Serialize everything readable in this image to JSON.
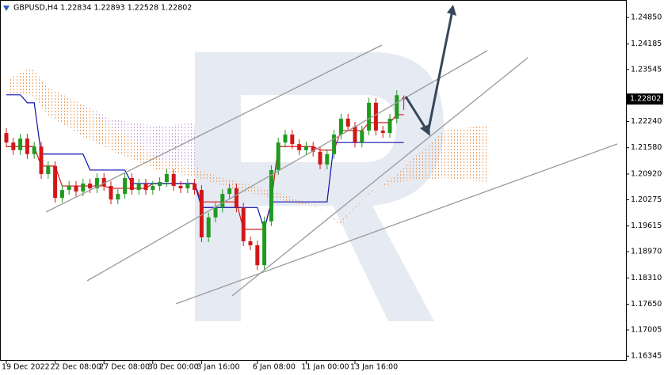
{
  "chart_data": {
    "type": "candlestick",
    "title": "GBPUSD,H4  1.22834 1.22893 1.22528 1.22802",
    "categories": [
      "19 Dec 2022",
      null,
      null,
      null,
      null,
      null,
      null,
      "22 Dec 08:00",
      null,
      null,
      null,
      null,
      null,
      null,
      "27 Dec 08:00",
      null,
      null,
      null,
      null,
      null,
      null,
      "30 Dec 00:00",
      null,
      null,
      null,
      null,
      null,
      null,
      "3 Jan 16:00",
      null,
      null,
      null,
      null,
      null,
      null,
      null,
      "6 Jan 08:00",
      null,
      null,
      null,
      null,
      null,
      null,
      "11 Jan 00:00",
      null,
      null,
      null,
      null,
      null,
      null,
      "13 Jan 16:00",
      null,
      null,
      null,
      null,
      null,
      null,
      null
    ],
    "open": [
      1.2195,
      1.2171,
      1.2152,
      1.2181,
      1.2142,
      1.2161,
      1.2092,
      1.2112,
      1.2032,
      1.2052,
      1.2062,
      1.2048,
      1.2068,
      1.2056,
      1.2082,
      1.2062,
      1.2028,
      1.2042,
      1.2082,
      1.2052,
      1.2068,
      1.2052,
      1.2062,
      1.2072,
      1.2092,
      1.2062,
      1.2056,
      1.2068,
      1.2052,
      1.1933,
      1.1983,
      1.2008,
      1.2042,
      1.2056,
      1.2008,
      1.1923,
      1.1913,
      1.1863,
      1.1973,
      1.2102,
      1.2171,
      1.2191,
      1.2167,
      1.2152,
      1.2161,
      1.2148,
      1.2116,
      1.2142,
      1.2191,
      1.2231,
      1.2211,
      1.2171,
      1.2201,
      1.2271,
      1.2201,
      1.2195,
      1.2231,
      1.22834
    ],
    "high": [
      1.2207,
      1.2183,
      1.2193,
      1.2193,
      1.2173,
      1.2173,
      1.2124,
      1.2124,
      1.2064,
      1.2074,
      1.2074,
      1.208,
      1.208,
      1.2094,
      1.2094,
      1.2074,
      1.2054,
      1.2094,
      1.2094,
      1.208,
      1.208,
      1.2074,
      1.2084,
      1.2104,
      1.2104,
      1.2074,
      1.208,
      1.208,
      1.2064,
      1.1995,
      1.202,
      1.2054,
      1.2068,
      1.2068,
      1.202,
      1.1935,
      1.1925,
      1.1985,
      1.2114,
      1.2183,
      1.2203,
      1.2203,
      1.2179,
      1.2173,
      1.2173,
      1.216,
      1.2154,
      1.2203,
      1.2243,
      1.2243,
      1.2223,
      1.2213,
      1.2283,
      1.2283,
      1.2213,
      1.2243,
      1.2302,
      1.22893
    ],
    "low": [
      1.2159,
      1.214,
      1.214,
      1.213,
      1.213,
      1.208,
      1.208,
      1.202,
      1.202,
      1.204,
      1.2036,
      1.2036,
      1.2044,
      1.2044,
      1.205,
      1.2016,
      1.2016,
      1.203,
      1.204,
      1.204,
      1.204,
      1.204,
      1.205,
      1.206,
      1.205,
      1.2044,
      1.2044,
      1.204,
      1.1921,
      1.1921,
      1.1971,
      1.1996,
      1.203,
      1.1996,
      1.1911,
      1.1901,
      1.1851,
      1.1851,
      1.1961,
      1.209,
      1.2159,
      1.2155,
      1.214,
      1.214,
      1.2136,
      1.2104,
      1.2104,
      1.213,
      1.2179,
      1.2199,
      1.2159,
      1.2159,
      1.2189,
      1.2189,
      1.2183,
      1.2183,
      1.2219,
      1.22528
    ],
    "close": [
      1.2171,
      1.2152,
      1.2181,
      1.2142,
      1.2161,
      1.2092,
      1.2112,
      1.2032,
      1.2052,
      1.2062,
      1.2048,
      1.2068,
      1.2056,
      1.2082,
      1.2062,
      1.2028,
      1.2042,
      1.2082,
      1.2052,
      1.2068,
      1.2052,
      1.2062,
      1.2072,
      1.2092,
      1.2062,
      1.2056,
      1.2068,
      1.2052,
      1.1933,
      1.1983,
      1.2008,
      1.2042,
      1.2056,
      1.2008,
      1.1923,
      1.1913,
      1.1863,
      1.1973,
      1.2102,
      1.2171,
      1.2191,
      1.2167,
      1.2152,
      1.2161,
      1.2148,
      1.2116,
      1.2142,
      1.2191,
      1.2231,
      1.2211,
      1.2171,
      1.2201,
      1.2271,
      1.2201,
      1.2195,
      1.2231,
      1.229,
      1.22802
    ],
    "up_color": "#1f9a1f",
    "down_color": "#d01818",
    "lines": [
      {
        "color": "#d01818",
        "values": [
          1.2161,
          1.2161,
          1.2161,
          1.2161,
          1.2161,
          1.2112,
          1.2112,
          1.2112,
          1.2062,
          1.2062,
          1.2062,
          1.2062,
          1.2062,
          1.2062,
          1.2062,
          1.2056,
          1.2056,
          1.2056,
          1.2056,
          1.2056,
          1.2056,
          1.2068,
          1.2068,
          1.2068,
          1.2068,
          1.2068,
          1.2068,
          1.2068,
          1.2022,
          1.2022,
          1.2022,
          1.2022,
          1.2022,
          1.2022,
          1.1953,
          1.1953,
          1.1953,
          1.1953,
          1.2022,
          1.2161,
          1.2161,
          1.2161,
          1.2161,
          1.2161,
          1.2161,
          1.2152,
          1.2152,
          1.2152,
          1.2201,
          1.2201,
          1.2201,
          1.2201,
          1.2221,
          1.2221,
          1.2221,
          1.2221,
          1.2241,
          1.2241
        ]
      },
      {
        "color": "#1010b0",
        "values": [
          1.2291,
          1.2291,
          1.2291,
          1.2271,
          1.2271,
          1.2142,
          1.2142,
          1.2142,
          1.2142,
          1.2142,
          1.2142,
          1.2142,
          1.2102,
          1.2102,
          1.2102,
          1.2102,
          1.2102,
          1.2102,
          1.2068,
          1.2068,
          1.2068,
          1.2068,
          1.2068,
          1.2068,
          1.2068,
          1.2068,
          1.2068,
          1.2068,
          1.2008,
          1.2008,
          1.2008,
          1.2008,
          1.2008,
          1.2008,
          1.2008,
          1.2008,
          1.2008,
          1.1953,
          1.2022,
          1.2022,
          1.2022,
          1.2022,
          1.2022,
          1.2022,
          1.2022,
          1.2022,
          1.2022,
          1.2171,
          1.2171,
          1.2171,
          1.2171,
          1.2171,
          1.2171,
          1.2171,
          1.2171,
          1.2171,
          1.2171,
          1.2171
        ]
      }
    ],
    "ylim": [
      1.1623,
      1.2529
    ],
    "yticks": [
      {
        "value": 1.2485,
        "label": "1.24850"
      },
      1.24185,
      1.23545,
      {
        "value": 1.2224,
        "label": "1.22240"
      },
      {
        "value": 1.2158,
        "label": "1.21580"
      },
      {
        "value": 1.2092,
        "label": "1.20920"
      },
      1.20275,
      1.19615,
      {
        "value": 1.1897,
        "label": "1.18970"
      },
      {
        "value": 1.1831,
        "label": "1.18310"
      },
      {
        "value": 1.1765,
        "label": "1.17650"
      },
      1.17005,
      1.16345
    ]
  }
}
